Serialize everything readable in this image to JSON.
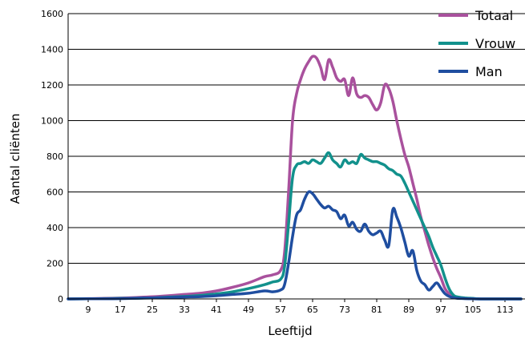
{
  "chart_data": {
    "type": "line",
    "title": "",
    "xlabel": "Leeftijd",
    "ylabel": "Aantal cliënten",
    "ylim": [
      0,
      1600
    ],
    "yticks": [
      0,
      200,
      400,
      600,
      800,
      1000,
      1200,
      1400,
      1600
    ],
    "xlim": [
      4,
      118
    ],
    "xticks": [
      9,
      17,
      25,
      33,
      41,
      49,
      57,
      65,
      73,
      81,
      89,
      97,
      105,
      113
    ],
    "grid": "horizontal",
    "legend_position": "top-right",
    "x": [
      4,
      9,
      13,
      17,
      21,
      25,
      29,
      33,
      37,
      41,
      45,
      49,
      53,
      55,
      57,
      58,
      59,
      60,
      61,
      62,
      63,
      64,
      65,
      66,
      67,
      68,
      69,
      70,
      71,
      72,
      73,
      74,
      75,
      76,
      77,
      78,
      79,
      80,
      81,
      82,
      83,
      84,
      85,
      86,
      87,
      88,
      89,
      90,
      91,
      92,
      93,
      94,
      95,
      96,
      97,
      98,
      99,
      100,
      101,
      103,
      105,
      107,
      109,
      111,
      113,
      117
    ],
    "series": [
      {
        "name": "Totaal",
        "color": "#a9519d",
        "values": [
          0,
          2,
          3,
          5,
          8,
          12,
          18,
          25,
          32,
          45,
          65,
          90,
          125,
          135,
          160,
          260,
          600,
          1000,
          1150,
          1230,
          1290,
          1330,
          1360,
          1350,
          1300,
          1230,
          1340,
          1300,
          1240,
          1220,
          1230,
          1140,
          1240,
          1150,
          1130,
          1140,
          1130,
          1090,
          1060,
          1100,
          1200,
          1180,
          1110,
          1000,
          900,
          810,
          740,
          650,
          560,
          460,
          380,
          300,
          230,
          170,
          120,
          60,
          30,
          15,
          8,
          4,
          2,
          0,
          0,
          0,
          0,
          0
        ]
      },
      {
        "name": "Vrouw",
        "color": "#12918c",
        "values": [
          0,
          1,
          2,
          3,
          4,
          6,
          10,
          14,
          20,
          28,
          40,
          58,
          80,
          95,
          110,
          180,
          420,
          680,
          750,
          760,
          770,
          760,
          780,
          770,
          760,
          790,
          820,
          780,
          760,
          740,
          780,
          760,
          770,
          760,
          810,
          790,
          780,
          770,
          770,
          760,
          750,
          730,
          720,
          700,
          690,
          650,
          600,
          550,
          500,
          450,
          400,
          350,
          290,
          240,
          190,
          120,
          60,
          25,
          12,
          6,
          3,
          0,
          0,
          0,
          0,
          0
        ]
      },
      {
        "name": "Man",
        "color": "#1f4ea0",
        "values": [
          0,
          1,
          1,
          2,
          4,
          6,
          8,
          11,
          13,
          18,
          25,
          32,
          45,
          40,
          50,
          80,
          200,
          350,
          470,
          500,
          560,
          600,
          590,
          560,
          530,
          510,
          520,
          500,
          490,
          450,
          470,
          410,
          430,
          390,
          380,
          420,
          380,
          360,
          370,
          380,
          330,
          300,
          500,
          460,
          400,
          320,
          240,
          270,
          160,
          100,
          80,
          50,
          70,
          90,
          60,
          30,
          15,
          8,
          4,
          2,
          1,
          0,
          0,
          0,
          0,
          0
        ]
      }
    ]
  }
}
